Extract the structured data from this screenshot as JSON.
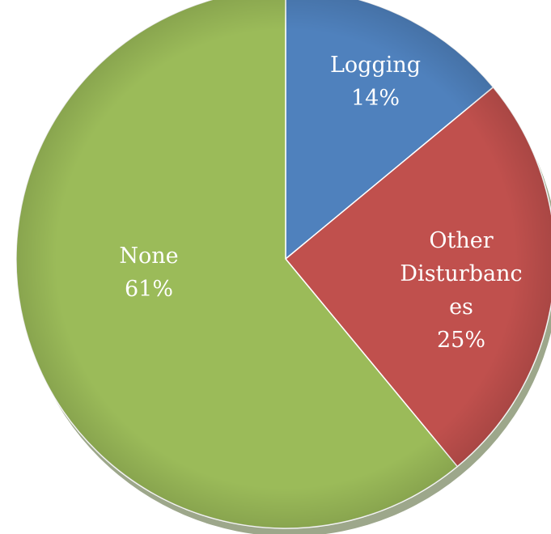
{
  "chart_data": {
    "type": "pie",
    "title": "",
    "slices": [
      {
        "category": "Logging",
        "label_lines": [
          "Logging"
        ],
        "value": 14,
        "value_label": "14%",
        "color": "#4f81bd"
      },
      {
        "category": "Other Disturbances",
        "label_lines": [
          "Other",
          "Disturbanc",
          "es"
        ],
        "value": 25,
        "value_label": "25%",
        "color": "#c0504d"
      },
      {
        "category": "None",
        "label_lines": [
          "None"
        ],
        "value": 61,
        "value_label": "61%",
        "color": "#9bbb59"
      }
    ],
    "legend": "none"
  }
}
